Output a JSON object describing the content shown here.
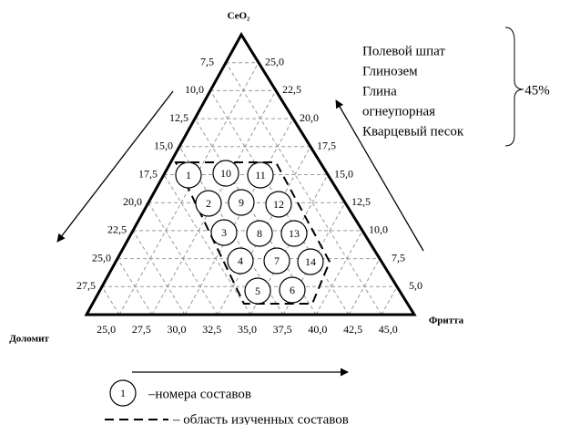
{
  "vertices": {
    "top": "CeO₂",
    "left": "Доломит",
    "right": "Фритта"
  },
  "left_ticks": [
    "7,5",
    "10,0",
    "12,5",
    "15,0",
    "17,5",
    "20,0",
    "22,5",
    "25,0",
    "27,5"
  ],
  "right_ticks": [
    "25,0",
    "22,5",
    "20,0",
    "17,5",
    "15,0",
    "12,5",
    "10,0",
    "7,5",
    "5,0"
  ],
  "bottom_ticks": [
    "25,0",
    "27,5",
    "30,0",
    "32,5",
    "35,0",
    "37,5",
    "40,0",
    "42,5",
    "45,0"
  ],
  "components": [
    "Полевой шпат",
    "Глинозем",
    "Глина",
    "огнеупорная",
    "Кварцевый песок"
  ],
  "components_total": "45%",
  "compositions": [
    "1",
    "10",
    "11",
    "2",
    "9",
    "12",
    "3",
    "8",
    "13",
    "4",
    "7",
    "14",
    "5",
    "6"
  ],
  "legend": {
    "circle_label": "1",
    "circle_text": "–номера составов",
    "dash_text": "– область изученных составов"
  }
}
